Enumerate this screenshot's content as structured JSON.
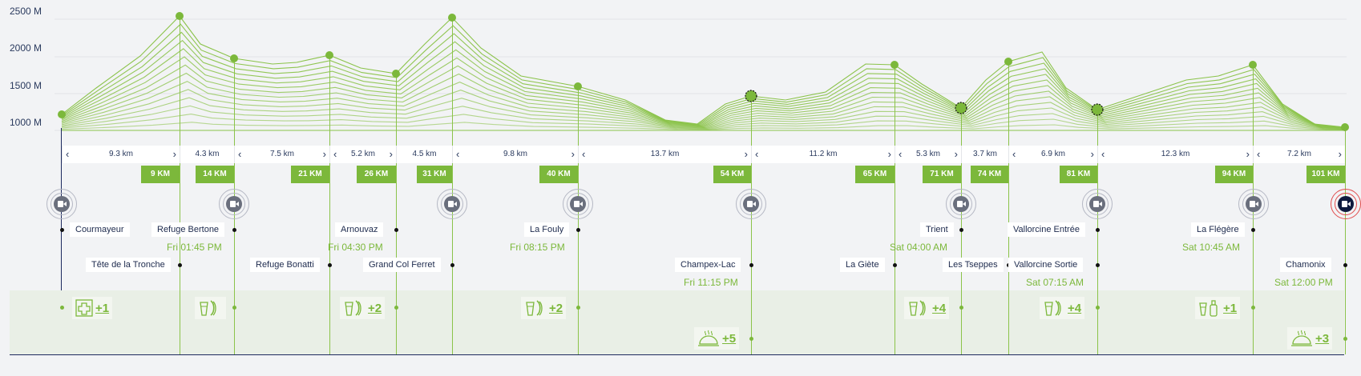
{
  "y_axis_labels": [
    "2500 M",
    "2000 M",
    "1500 M",
    "1000 M"
  ],
  "segments": [
    "9.3 km",
    "4.3 km",
    "7.5 km",
    "5.2 km",
    "4.5 km",
    "9.8 km",
    "13.7 km",
    "11.2 km",
    "5.3 km",
    "3.7 km",
    "6.9 km",
    "12.3 km",
    "7.2 km"
  ],
  "km_markers": [
    "9 KM",
    "14 KM",
    "21 KM",
    "26 KM",
    "31 KM",
    "40 KM",
    "54 KM",
    "65 KM",
    "71 KM",
    "74 KM",
    "81 KM",
    "94 KM",
    "101 KM"
  ],
  "locations": [
    {
      "name": "Courmayeur",
      "time": ""
    },
    {
      "name": "Tête de la Tronche",
      "time": ""
    },
    {
      "name": "Refuge Bertone",
      "time": "Fri 01:45 PM"
    },
    {
      "name": "Refuge Bonatti",
      "time": ""
    },
    {
      "name": "Arnouvaz",
      "time": "Fri 04:30 PM"
    },
    {
      "name": "Grand Col Ferret",
      "time": ""
    },
    {
      "name": "La Fouly",
      "time": "Fri 08:15 PM"
    },
    {
      "name": "Champex-Lac",
      "time": "Fri 11:15 PM"
    },
    {
      "name": "La Giète",
      "time": ""
    },
    {
      "name": "Trient",
      "time": "Sat 04:00 AM"
    },
    {
      "name": "Les Tseppes",
      "time": ""
    },
    {
      "name": "Vallorcine Entrée",
      "time": ""
    },
    {
      "name": "Vallorcine Sortie",
      "time": "Sat 07:15 AM"
    },
    {
      "name": "La Flégère",
      "time": "Sat 10:45 AM"
    },
    {
      "name": "Chamonix",
      "time": "Sat 12:00 PM"
    }
  ],
  "services": [
    {
      "icon": "medical-cross-icon",
      "count": "+1"
    },
    {
      "icon": "drink-snack-icon",
      "count": ""
    },
    {
      "icon": "drink-snack-icon",
      "count": "+2"
    },
    {
      "icon": "drink-snack-icon",
      "count": "+2"
    },
    {
      "icon": "hot-meal-icon",
      "count": "+5"
    },
    {
      "icon": "drink-snack-icon",
      "count": "+4"
    },
    {
      "icon": "drink-snack-icon",
      "count": "+4"
    },
    {
      "icon": "drink-bottle-icon",
      "count": "+1"
    },
    {
      "icon": "hot-meal-icon",
      "count": "+3"
    }
  ],
  "colors": {
    "accent": "#7cb83b",
    "navy": "#1d2a5e",
    "live": "#e14c4c",
    "camera": "#6a6f7d"
  }
}
